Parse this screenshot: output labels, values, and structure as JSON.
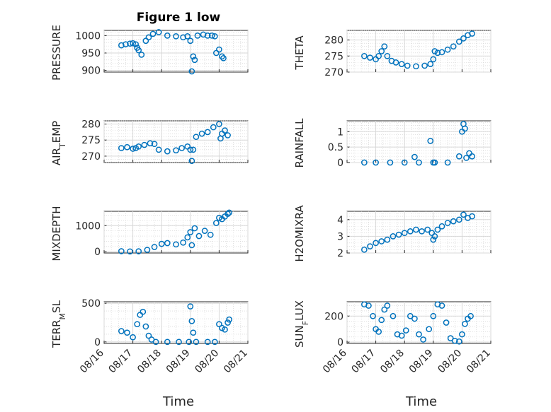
{
  "figure": {
    "title": "Figure 1 low",
    "xlabel": "Time"
  },
  "colors": {
    "marker": "#0072bd",
    "axis": "#262626",
    "grid": "#d9d9d9"
  },
  "chart_data": [
    {
      "type": "scatter",
      "ylabel": "PRESSURE",
      "ylim": [
        895,
        1015
      ],
      "yticks": [
        "900",
        "950",
        "1000"
      ],
      "xticks": [],
      "series": [
        {
          "x": [
            0.6,
            0.75,
            0.9,
            1.0,
            1.1,
            1.15,
            1.2,
            1.3,
            1.45,
            1.55,
            1.7,
            1.9,
            2.2,
            2.5,
            2.75,
            2.9,
            3.0,
            3.05,
            3.1,
            3.15,
            3.25,
            3.45,
            3.6,
            3.75,
            3.85,
            3.9,
            4.0,
            4.1,
            4.15
          ],
          "y": [
            972,
            975,
            977,
            978,
            975,
            965,
            958,
            945,
            985,
            995,
            1005,
            1010,
            1000,
            998,
            995,
            998,
            985,
            897,
            940,
            930,
            1000,
            1003,
            1000,
            1000,
            998,
            950,
            960,
            940,
            935
          ]
        }
      ]
    },
    {
      "type": "scatter",
      "ylabel": "THETA",
      "ylim": [
        270,
        283
      ],
      "yticks": [
        "270",
        "275",
        "280"
      ],
      "xticks": [],
      "series": [
        {
          "x": [
            0.6,
            0.8,
            1.0,
            1.1,
            1.2,
            1.3,
            1.4,
            1.55,
            1.7,
            1.9,
            2.1,
            2.4,
            2.7,
            2.9,
            3.0,
            3.05,
            3.15,
            3.3,
            3.5,
            3.7,
            3.9,
            4.05,
            4.2,
            4.35
          ],
          "y": [
            275,
            274.5,
            274,
            275,
            276.5,
            278,
            275,
            273.5,
            273,
            272.5,
            272,
            271.8,
            272,
            272.5,
            274,
            276.5,
            276,
            276.2,
            277,
            278,
            279.5,
            280.5,
            281.5,
            282
          ]
        }
      ]
    },
    {
      "type": "scatter",
      "ylabel": "AIR_TEMP",
      "ylim": [
        268,
        281
      ],
      "yticks": [
        "270",
        "275",
        "280"
      ],
      "xticks": [],
      "series": [
        {
          "x": [
            0.6,
            0.8,
            1.0,
            1.1,
            1.2,
            1.4,
            1.6,
            1.75,
            1.9,
            2.2,
            2.5,
            2.7,
            2.9,
            3.0,
            3.05,
            3.1,
            3.2,
            3.4,
            3.6,
            3.8,
            4.0,
            4.05,
            4.1,
            4.2,
            4.3
          ],
          "y": [
            272.5,
            272.8,
            272.3,
            272.5,
            273,
            273.5,
            274,
            273.8,
            272,
            271.5,
            271.8,
            272.5,
            273,
            272,
            268.5,
            272,
            276,
            277,
            277.5,
            279,
            280,
            275.5,
            277,
            278,
            276.5
          ]
        }
      ]
    },
    {
      "type": "scatter",
      "ylabel": "RAINFALL",
      "ylim": [
        0,
        1.35
      ],
      "yticks": [
        "0",
        "0.5",
        "1"
      ],
      "xticks": [],
      "series": [
        {
          "x": [
            0.6,
            1.0,
            1.5,
            2.0,
            2.35,
            2.5,
            2.9,
            3.0,
            3.05,
            3.5,
            3.9,
            4.0,
            4.05,
            4.1,
            4.15,
            4.25,
            4.35
          ],
          "y": [
            0,
            0,
            0,
            0,
            0.18,
            0,
            0.7,
            0,
            0,
            0,
            0.2,
            1.0,
            1.25,
            1.1,
            0.15,
            0.3,
            0.2
          ]
        }
      ]
    },
    {
      "type": "scatter",
      "ylabel": "MIXDEPTH",
      "ylim": [
        -50,
        1550
      ],
      "yticks": [
        "0",
        "1000"
      ],
      "xticks": [],
      "series": [
        {
          "x": [
            0.6,
            0.9,
            1.2,
            1.5,
            1.75,
            2.0,
            2.2,
            2.5,
            2.75,
            2.9,
            3.0,
            3.05,
            3.15,
            3.3,
            3.5,
            3.7,
            3.9,
            4.0,
            4.1,
            4.2,
            4.3,
            4.35
          ],
          "y": [
            20,
            10,
            15,
            70,
            180,
            300,
            330,
            280,
            350,
            550,
            750,
            250,
            900,
            600,
            800,
            650,
            1100,
            1300,
            1250,
            1350,
            1450,
            1500
          ]
        }
      ]
    },
    {
      "type": "scatter",
      "ylabel": "H2OMIXRA",
      "ylim": [
        2,
        4.5
      ],
      "yticks": [
        "2",
        "3",
        "4"
      ],
      "xticks": [],
      "series": [
        {
          "x": [
            0.6,
            0.8,
            1.0,
            1.2,
            1.4,
            1.6,
            1.8,
            2.0,
            2.2,
            2.4,
            2.6,
            2.8,
            2.95,
            3.0,
            3.05,
            3.15,
            3.3,
            3.5,
            3.7,
            3.9,
            4.05,
            4.2,
            4.35
          ],
          "y": [
            2.2,
            2.4,
            2.6,
            2.7,
            2.8,
            3.0,
            3.1,
            3.2,
            3.3,
            3.4,
            3.3,
            3.4,
            3.2,
            2.8,
            3.0,
            3.4,
            3.6,
            3.8,
            3.9,
            4.0,
            4.3,
            4.1,
            4.2
          ]
        }
      ]
    },
    {
      "type": "scatter",
      "ylabel": "TERR_MSL",
      "ylim": [
        -20,
        520
      ],
      "yticks": [
        "0",
        "500"
      ],
      "xticks": [
        "08/16",
        "08/17",
        "08/18",
        "08/19",
        "08/20",
        "08/21"
      ],
      "series": [
        {
          "x": [
            0.6,
            0.8,
            1.0,
            1.15,
            1.25,
            1.35,
            1.45,
            1.55,
            1.65,
            1.8,
            2.2,
            2.6,
            2.95,
            3.0,
            3.05,
            3.1,
            3.2,
            3.6,
            3.85,
            4.0,
            4.1,
            4.2,
            4.3,
            4.35
          ],
          "y": [
            140,
            120,
            60,
            230,
            350,
            390,
            200,
            80,
            30,
            0,
            0,
            0,
            0,
            460,
            270,
            120,
            0,
            0,
            0,
            230,
            180,
            160,
            250,
            290
          ]
        }
      ]
    },
    {
      "type": "scatter",
      "ylabel": "SUN_FLUX",
      "ylim": [
        -10,
        310
      ],
      "yticks": [
        "0",
        "200"
      ],
      "xticks": [
        "08/16",
        "08/17",
        "08/18",
        "08/19",
        "08/20",
        "08/21"
      ],
      "series": [
        {
          "x": [
            0.6,
            0.75,
            0.9,
            1.0,
            1.1,
            1.2,
            1.3,
            1.4,
            1.6,
            1.75,
            1.9,
            2.05,
            2.2,
            2.35,
            2.5,
            2.65,
            2.85,
            3.0,
            3.15,
            3.3,
            3.45,
            3.6,
            3.75,
            3.9,
            4.0,
            4.1,
            4.2,
            4.3
          ],
          "y": [
            290,
            280,
            200,
            100,
            80,
            170,
            250,
            280,
            200,
            60,
            50,
            90,
            200,
            180,
            60,
            20,
            100,
            200,
            290,
            280,
            150,
            30,
            10,
            5,
            60,
            140,
            180,
            200
          ]
        }
      ]
    }
  ]
}
